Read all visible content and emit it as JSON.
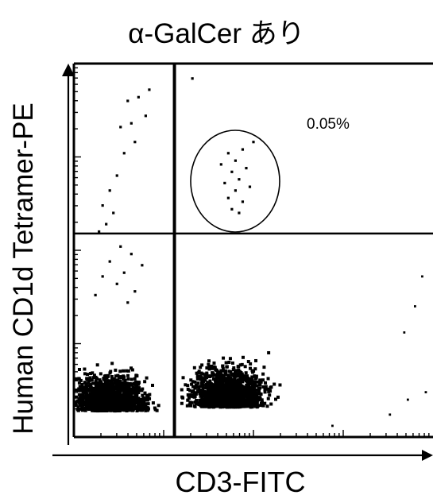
{
  "chart_data": {
    "type": "scatter",
    "title": "α-GalCer あり",
    "xlabel": "CD3-FITC",
    "ylabel": "Human CD1d Tetramer-PE",
    "xlim": [
      0,
      1
    ],
    "ylim": [
      0,
      1
    ],
    "grid": false,
    "gates": {
      "x": 0.28,
      "y": 0.545
    },
    "annotations": [
      {
        "text": "0.05%",
        "quadrant": "upper-right"
      }
    ],
    "highlighted_population": "circled cluster in upper-right quadrant",
    "series": [
      {
        "points": [
          [
            0.21,
            0.93
          ],
          [
            0.18,
            0.91
          ],
          [
            0.15,
            0.9
          ],
          [
            0.2,
            0.86
          ],
          [
            0.16,
            0.84
          ],
          [
            0.13,
            0.83
          ],
          [
            0.17,
            0.79
          ],
          [
            0.14,
            0.76
          ],
          [
            0.12,
            0.7
          ],
          [
            0.1,
            0.66
          ],
          [
            0.08,
            0.62
          ],
          [
            0.11,
            0.6
          ],
          [
            0.09,
            0.57
          ],
          [
            0.07,
            0.55
          ],
          [
            0.13,
            0.51
          ],
          [
            0.16,
            0.49
          ],
          [
            0.1,
            0.47
          ],
          [
            0.19,
            0.46
          ],
          [
            0.14,
            0.44
          ],
          [
            0.08,
            0.43
          ],
          [
            0.12,
            0.41
          ],
          [
            0.17,
            0.39
          ],
          [
            0.06,
            0.38
          ],
          [
            0.15,
            0.36
          ],
          [
            0.5,
            0.79
          ],
          [
            0.47,
            0.77
          ],
          [
            0.43,
            0.76
          ],
          [
            0.45,
            0.74
          ],
          [
            0.41,
            0.73
          ],
          [
            0.48,
            0.72
          ],
          [
            0.44,
            0.71
          ],
          [
            0.46,
            0.69
          ],
          [
            0.42,
            0.68
          ],
          [
            0.49,
            0.67
          ],
          [
            0.45,
            0.66
          ],
          [
            0.43,
            0.64
          ],
          [
            0.47,
            0.63
          ],
          [
            0.44,
            0.61
          ],
          [
            0.46,
            0.6
          ],
          [
            0.33,
            0.96
          ]
        ]
      }
    ],
    "color": "#000000"
  }
}
